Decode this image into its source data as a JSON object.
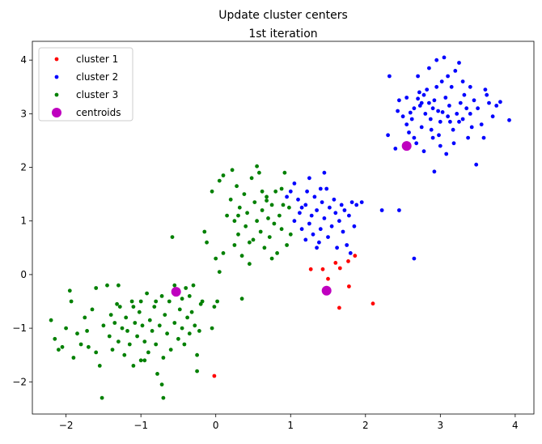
{
  "chart_data": {
    "type": "scatter",
    "title": "Update cluster centers",
    "subtitle": "1st iteration",
    "xlabel": "",
    "ylabel": "",
    "xlim": [
      -2.45,
      4.25
    ],
    "ylim": [
      -2.6,
      4.35
    ],
    "xticks": [
      -2,
      -1,
      0,
      1,
      2,
      3,
      4
    ],
    "yticks": [
      -2,
      -1,
      0,
      1,
      2,
      3,
      4
    ],
    "grid": false,
    "legend_position": "top-left",
    "series": [
      {
        "name": "cluster 1",
        "color": "#ff0000",
        "marker_size": "small",
        "points": [
          [
            1.27,
            0.1
          ],
          [
            1.43,
            0.1
          ],
          [
            1.6,
            0.22
          ],
          [
            1.66,
            0.12
          ],
          [
            1.77,
            0.25
          ],
          [
            1.86,
            0.35
          ],
          [
            1.5,
            -0.08
          ],
          [
            1.78,
            -0.22
          ],
          [
            1.65,
            -0.62
          ],
          [
            2.1,
            -0.54
          ],
          [
            -0.02,
            -1.89
          ]
        ]
      },
      {
        "name": "cluster 2",
        "color": "#0000ff",
        "marker_size": "small",
        "points": [
          [
            2.32,
            3.7
          ],
          [
            2.45,
            3.25
          ],
          [
            2.43,
            3.05
          ],
          [
            2.5,
            2.95
          ],
          [
            2.55,
            2.8
          ],
          [
            2.6,
            3.02
          ],
          [
            2.65,
            3.1
          ],
          [
            2.7,
            3.7
          ],
          [
            2.72,
            3.4
          ],
          [
            2.73,
            3.15
          ],
          [
            2.75,
            3.2
          ],
          [
            2.78,
            3.35
          ],
          [
            2.8,
            3.0
          ],
          [
            2.82,
            3.45
          ],
          [
            2.85,
            3.85
          ],
          [
            2.87,
            2.9
          ],
          [
            2.88,
            2.7
          ],
          [
            2.9,
            3.1
          ],
          [
            2.92,
            3.25
          ],
          [
            2.95,
            4.0
          ],
          [
            2.97,
            3.05
          ],
          [
            3.0,
            2.85
          ],
          [
            3.02,
            3.6
          ],
          [
            3.05,
            4.05
          ],
          [
            3.07,
            3.3
          ],
          [
            3.1,
            2.95
          ],
          [
            3.12,
            3.15
          ],
          [
            3.15,
            3.5
          ],
          [
            3.17,
            2.7
          ],
          [
            3.2,
            3.8
          ],
          [
            3.22,
            3.0
          ],
          [
            3.25,
            3.95
          ],
          [
            3.27,
            3.2
          ],
          [
            3.3,
            2.9
          ],
          [
            3.32,
            3.35
          ],
          [
            3.35,
            3.1
          ],
          [
            3.37,
            2.55
          ],
          [
            3.4,
            3.0
          ],
          [
            3.42,
            2.75
          ],
          [
            3.45,
            3.25
          ],
          [
            3.5,
            3.1
          ],
          [
            3.55,
            2.8
          ],
          [
            3.6,
            3.45
          ],
          [
            3.65,
            3.2
          ],
          [
            3.7,
            2.95
          ],
          [
            3.75,
            3.15
          ],
          [
            3.58,
            2.55
          ],
          [
            3.48,
            2.05
          ],
          [
            3.62,
            3.35
          ],
          [
            3.8,
            3.22
          ],
          [
            3.92,
            2.88
          ],
          [
            2.68,
            2.45
          ],
          [
            2.78,
            2.3
          ],
          [
            2.9,
            2.55
          ],
          [
            3.0,
            2.4
          ],
          [
            3.08,
            2.25
          ],
          [
            3.18,
            2.45
          ],
          [
            2.92,
            1.92
          ],
          [
            2.65,
            2.55
          ],
          [
            2.58,
            2.65
          ],
          [
            2.4,
            2.35
          ],
          [
            2.3,
            2.6
          ],
          [
            2.75,
            2.75
          ],
          [
            3.1,
            3.7
          ],
          [
            3.3,
            3.6
          ],
          [
            2.95,
            3.5
          ],
          [
            2.85,
            3.2
          ],
          [
            3.03,
            3.03
          ],
          [
            3.13,
            2.85
          ],
          [
            2.98,
            2.6
          ],
          [
            2.62,
            2.9
          ],
          [
            2.55,
            3.3
          ],
          [
            2.7,
            3.28
          ],
          [
            3.25,
            2.85
          ],
          [
            3.4,
            3.5
          ],
          [
            1.05,
            1.7
          ],
          [
            1.1,
            1.4
          ],
          [
            1.12,
            1.15
          ],
          [
            1.15,
            0.85
          ],
          [
            1.2,
            1.3
          ],
          [
            1.22,
            1.55
          ],
          [
            1.25,
            0.95
          ],
          [
            1.28,
            1.1
          ],
          [
            1.3,
            0.75
          ],
          [
            1.32,
            1.45
          ],
          [
            1.35,
            1.2
          ],
          [
            1.38,
            0.6
          ],
          [
            1.4,
            0.85
          ],
          [
            1.42,
            1.35
          ],
          [
            1.45,
            1.05
          ],
          [
            1.48,
            1.6
          ],
          [
            1.5,
            0.7
          ],
          [
            1.52,
            1.25
          ],
          [
            1.55,
            0.9
          ],
          [
            1.58,
            1.4
          ],
          [
            1.6,
            1.15
          ],
          [
            1.62,
            0.5
          ],
          [
            1.65,
            1.0
          ],
          [
            1.68,
            1.3
          ],
          [
            1.7,
            0.8
          ],
          [
            1.72,
            1.2
          ],
          [
            1.75,
            0.55
          ],
          [
            1.78,
            1.1
          ],
          [
            1.8,
            0.4
          ],
          [
            1.82,
            1.35
          ],
          [
            1.85,
            0.9
          ],
          [
            1.88,
            1.3
          ],
          [
            1.95,
            1.35
          ],
          [
            1.15,
            1.25
          ],
          [
            1.25,
            1.8
          ],
          [
            1.45,
            1.9
          ],
          [
            1.0,
            1.55
          ],
          [
            0.95,
            1.45
          ],
          [
            1.05,
            1.0
          ],
          [
            1.35,
            0.5
          ],
          [
            2.22,
            1.2
          ],
          [
            2.45,
            1.2
          ],
          [
            2.65,
            0.3
          ],
          [
            1.2,
            0.65
          ],
          [
            1.4,
            1.6
          ]
        ]
      },
      {
        "name": "cluster 3",
        "color": "#008000",
        "marker_size": "small",
        "points": [
          [
            -2.2,
            -0.85
          ],
          [
            -2.15,
            -1.2
          ],
          [
            -2.1,
            -1.4
          ],
          [
            -2.05,
            -1.35
          ],
          [
            -2.0,
            -1.0
          ],
          [
            -1.95,
            -0.3
          ],
          [
            -1.93,
            -0.5
          ],
          [
            -1.9,
            -1.55
          ],
          [
            -1.85,
            -1.1
          ],
          [
            -1.8,
            -1.3
          ],
          [
            -1.75,
            -0.8
          ],
          [
            -1.72,
            -1.05
          ],
          [
            -1.7,
            -1.35
          ],
          [
            -1.65,
            -0.65
          ],
          [
            -1.6,
            -1.45
          ],
          [
            -1.55,
            -1.7
          ],
          [
            -1.52,
            -2.3
          ],
          [
            -1.5,
            -0.95
          ],
          [
            -1.45,
            -0.2
          ],
          [
            -1.42,
            -1.15
          ],
          [
            -1.4,
            -0.75
          ],
          [
            -1.38,
            -1.4
          ],
          [
            -1.35,
            -0.9
          ],
          [
            -1.32,
            -0.55
          ],
          [
            -1.3,
            -1.25
          ],
          [
            -1.28,
            -0.6
          ],
          [
            -1.25,
            -1.0
          ],
          [
            -1.22,
            -1.5
          ],
          [
            -1.2,
            -0.8
          ],
          [
            -1.18,
            -1.05
          ],
          [
            -1.15,
            -1.3
          ],
          [
            -1.12,
            -0.5
          ],
          [
            -1.1,
            -1.7
          ],
          [
            -1.08,
            -0.9
          ],
          [
            -1.05,
            -1.15
          ],
          [
            -1.02,
            -0.7
          ],
          [
            -1.0,
            -1.6
          ],
          [
            -0.98,
            -0.95
          ],
          [
            -0.95,
            -1.25
          ],
          [
            -0.92,
            -0.35
          ],
          [
            -0.9,
            -1.45
          ],
          [
            -0.88,
            -0.85
          ],
          [
            -0.85,
            -1.05
          ],
          [
            -0.82,
            -0.6
          ],
          [
            -0.8,
            -1.3
          ],
          [
            -0.78,
            -1.85
          ],
          [
            -0.75,
            -0.95
          ],
          [
            -0.72,
            -0.4
          ],
          [
            -0.7,
            -1.55
          ],
          [
            -0.68,
            -0.75
          ],
          [
            -0.65,
            -1.1
          ],
          [
            -0.62,
            -0.5
          ],
          [
            -0.6,
            -1.4
          ],
          [
            -0.58,
            0.7
          ],
          [
            -0.55,
            -0.9
          ],
          [
            -0.5,
            -1.2
          ],
          [
            -0.48,
            -0.65
          ],
          [
            -0.45,
            -1.0
          ],
          [
            -0.42,
            -1.3
          ],
          [
            -0.4,
            -0.25
          ],
          [
            -0.38,
            -0.8
          ],
          [
            -0.35,
            -1.1
          ],
          [
            -0.32,
            -0.7
          ],
          [
            -0.3,
            -0.2
          ],
          [
            -0.25,
            -1.5
          ],
          [
            -0.22,
            -1.05
          ],
          [
            -0.2,
            -0.55
          ],
          [
            -0.15,
            0.8
          ],
          [
            -0.12,
            0.6
          ],
          [
            -0.05,
            -1.0
          ],
          [
            -0.02,
            -0.6
          ],
          [
            0.05,
            0.05
          ],
          [
            0.1,
            0.4
          ],
          [
            0.15,
            1.1
          ],
          [
            0.2,
            1.4
          ],
          [
            0.25,
            1.0
          ],
          [
            0.28,
            1.65
          ],
          [
            0.3,
            0.75
          ],
          [
            0.32,
            1.25
          ],
          [
            0.35,
            0.35
          ],
          [
            0.38,
            1.5
          ],
          [
            0.4,
            0.9
          ],
          [
            0.42,
            1.15
          ],
          [
            0.45,
            0.6
          ],
          [
            0.48,
            1.8
          ],
          [
            0.5,
            0.65
          ],
          [
            0.52,
            1.35
          ],
          [
            0.55,
            1.0
          ],
          [
            0.58,
            1.9
          ],
          [
            0.6,
            0.8
          ],
          [
            0.62,
            1.2
          ],
          [
            0.65,
            0.5
          ],
          [
            0.68,
            1.45
          ],
          [
            0.7,
            1.05
          ],
          [
            0.72,
            0.7
          ],
          [
            0.75,
            1.3
          ],
          [
            0.78,
            0.95
          ],
          [
            0.8,
            1.55
          ],
          [
            0.82,
            0.4
          ],
          [
            0.85,
            1.1
          ],
          [
            0.88,
            0.85
          ],
          [
            0.9,
            1.3
          ],
          [
            0.92,
            1.9
          ],
          [
            0.95,
            0.55
          ],
          [
            0.98,
            1.25
          ],
          [
            1.0,
            0.75
          ],
          [
            0.75,
            0.3
          ],
          [
            0.55,
            2.02
          ],
          [
            0.22,
            1.95
          ],
          [
            0.05,
            1.75
          ],
          [
            0.1,
            1.85
          ],
          [
            -0.05,
            1.55
          ],
          [
            0.45,
            0.2
          ],
          [
            0.35,
            -0.45
          ],
          [
            -0.25,
            -1.8
          ],
          [
            -0.8,
            -0.5
          ],
          [
            -1.6,
            -0.25
          ],
          [
            -1.3,
            -0.2
          ],
          [
            -0.95,
            -1.6
          ],
          [
            -0.72,
            -2.05
          ],
          [
            -0.7,
            -2.3
          ],
          [
            -1.0,
            -0.5
          ],
          [
            -1.1,
            -0.6
          ],
          [
            -0.45,
            -0.45
          ],
          [
            -0.55,
            -0.2
          ],
          [
            -0.35,
            -0.4
          ],
          [
            -0.28,
            -0.95
          ],
          [
            -0.18,
            -0.5
          ],
          [
            0.02,
            -0.5
          ],
          [
            0.0,
            0.3
          ],
          [
            0.68,
            1.38
          ],
          [
            0.88,
            1.6
          ],
          [
            0.62,
            1.55
          ],
          [
            0.3,
            1.1
          ],
          [
            0.25,
            0.55
          ]
        ]
      },
      {
        "name": "centroids",
        "color": "#bf00bf",
        "marker_size": "large",
        "points": [
          [
            -0.53,
            -0.32
          ],
          [
            1.48,
            -0.3
          ],
          [
            2.55,
            2.4
          ]
        ]
      }
    ]
  }
}
